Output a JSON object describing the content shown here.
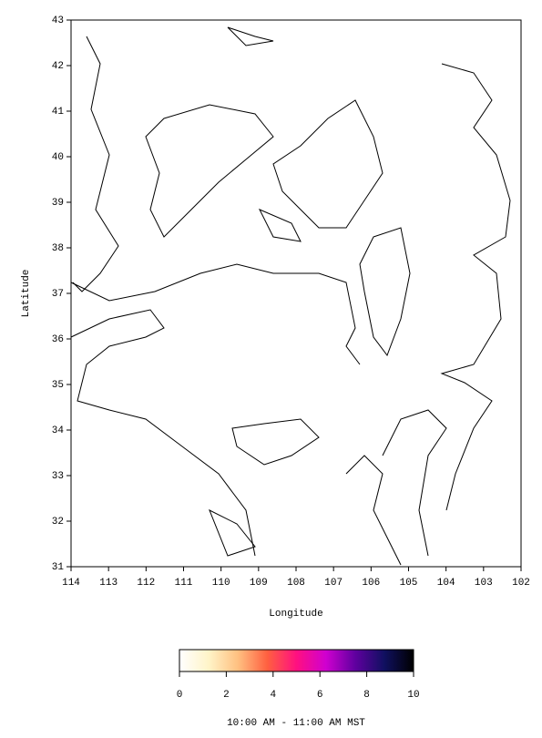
{
  "chart_data": {
    "type": "map",
    "xlabel": "Longitude",
    "ylabel": "Latitude",
    "xlim": [
      114,
      102
    ],
    "ylim": [
      31,
      43
    ],
    "xticks": [
      114,
      113,
      112,
      111,
      110,
      109,
      108,
      107,
      106,
      105,
      104,
      103,
      102
    ],
    "yticks": [
      31,
      32,
      33,
      34,
      35,
      36,
      37,
      38,
      39,
      40,
      41,
      42,
      43
    ],
    "colorbar": {
      "range": [
        0,
        10
      ],
      "ticks": [
        0,
        2,
        4,
        6,
        8,
        10
      ],
      "colors": [
        "#ffffff",
        "#fff4c8",
        "#ffc080",
        "#ff6040",
        "#ff1080",
        "#d000d0",
        "#6000a0",
        "#101060",
        "#000000"
      ]
    },
    "caption": "10:00 AM - 11:00 AM MST"
  }
}
